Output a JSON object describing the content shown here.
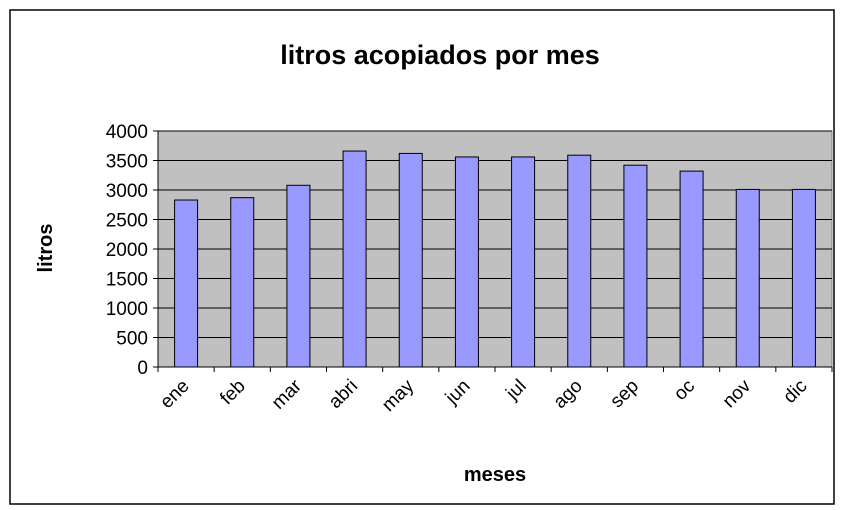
{
  "chart_data": {
    "type": "bar",
    "title": "litros acopiados por mes",
    "x_label": "meses",
    "y_label": "litros",
    "categories": [
      "ene",
      "feb",
      "mar",
      "abri",
      "may",
      "jun",
      "jul",
      "ago",
      "sep",
      "oc",
      "nov",
      "dic"
    ],
    "values": [
      2830,
      2870,
      3080,
      3660,
      3620,
      3560,
      3560,
      3590,
      3420,
      3320,
      3010,
      3010
    ],
    "color": "#9999ff",
    "ylim": [
      0,
      4000
    ],
    "yticks": [
      0,
      500,
      1000,
      1500,
      2000,
      2500,
      3000,
      3500,
      4000
    ],
    "grid": true
  }
}
